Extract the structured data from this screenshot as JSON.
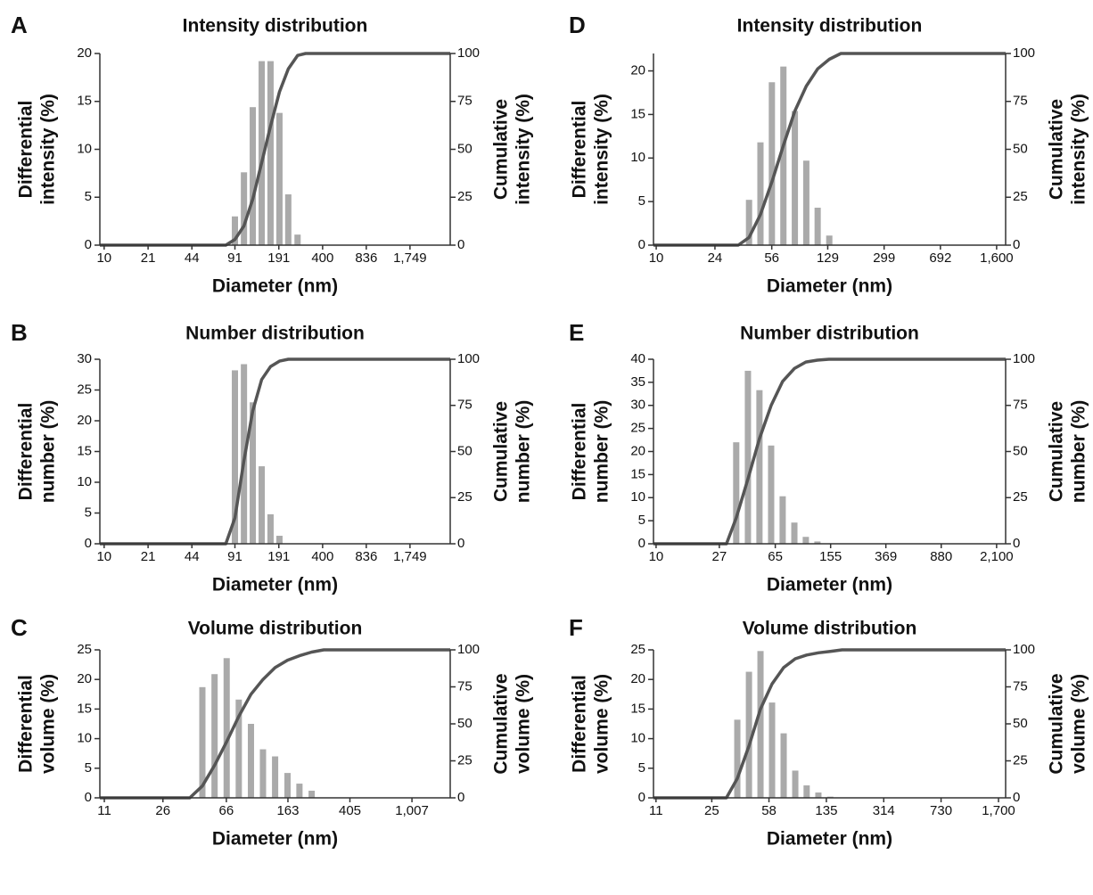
{
  "chart_data": [
    {
      "type": "bar",
      "panel": "A",
      "title": "Intensity distribution",
      "xlabel": "Diameter (nm)",
      "ylabel": [
        "Differential",
        "intensity (%)"
      ],
      "y2label": [
        "Cumulative",
        "intensity (%)"
      ],
      "xscale": "log",
      "xlim": [
        9.3,
        3450
      ],
      "xticks": [
        10,
        21,
        44,
        91,
        191,
        400,
        836,
        {
          "value": 1749,
          "label": "1,749"
        }
      ],
      "ylim": [
        0,
        20
      ],
      "yticks": [
        0,
        5,
        10,
        15,
        20
      ],
      "y2lim": [
        0,
        100
      ],
      "y2ticks": [
        0,
        25,
        50,
        75,
        100
      ],
      "series": [
        {
          "type": "bar",
          "color": "#aaaaaa",
          "x": [
            91,
            106,
            123,
            143,
            166,
            193,
            224,
            262
          ],
          "values": [
            3,
            7.6,
            14.4,
            19.2,
            19.2,
            13.8,
            5.3,
            1.1
          ]
        },
        {
          "type": "line",
          "axis": "y2",
          "color": "#555555",
          "x": [
            9.3,
            78,
            91,
            106,
            123,
            143,
            166,
            193,
            224,
            262,
            300,
            3450
          ],
          "values": [
            0,
            0,
            3,
            10,
            24,
            43,
            62,
            80,
            92,
            99,
            100,
            100
          ]
        }
      ]
    },
    {
      "type": "bar",
      "panel": "B",
      "title": "Number distribution",
      "xlabel": "Diameter (nm)",
      "ylabel": [
        "Differential",
        "number (%)"
      ],
      "y2label": [
        "Cumulative",
        "number (%)"
      ],
      "xscale": "log",
      "xlim": [
        9.3,
        3450
      ],
      "xticks": [
        10,
        21,
        44,
        91,
        191,
        400,
        836,
        {
          "value": 1749,
          "label": "1,749"
        }
      ],
      "ylim": [
        0,
        30
      ],
      "yticks": [
        0,
        5,
        10,
        15,
        20,
        25,
        30
      ],
      "y2lim": [
        0,
        100
      ],
      "y2ticks": [
        0,
        25,
        50,
        75,
        100
      ],
      "series": [
        {
          "type": "bar",
          "color": "#aaaaaa",
          "x": [
            91,
            106,
            123,
            143,
            166,
            193
          ],
          "values": [
            28.2,
            29.2,
            23,
            12.6,
            4.8,
            1.3
          ]
        },
        {
          "type": "line",
          "axis": "y2",
          "color": "#555555",
          "x": [
            9.3,
            78,
            91,
            106,
            123,
            143,
            166,
            193,
            224,
            3450
          ],
          "values": [
            0,
            0,
            14,
            45,
            72,
            89,
            96,
            99,
            100,
            100
          ]
        }
      ]
    },
    {
      "type": "bar",
      "panel": "C",
      "title": "Volume distribution",
      "xlabel": "Diameter (nm)",
      "ylabel": [
        "Differential",
        "volume (%)"
      ],
      "y2label": [
        "Cumulative",
        "volume (%)"
      ],
      "xscale": "log",
      "xlim": [
        10.3,
        1766
      ],
      "xticks": [
        11,
        26,
        66,
        163,
        405,
        {
          "value": 1007,
          "label": "1,007"
        }
      ],
      "ylim": [
        0,
        25
      ],
      "yticks": [
        0,
        5,
        10,
        15,
        20,
        25
      ],
      "y2lim": [
        0,
        100
      ],
      "y2ticks": [
        0,
        25,
        50,
        75,
        100
      ],
      "series": [
        {
          "type": "bar",
          "color": "#aaaaaa",
          "x": [
            46.4,
            55.5,
            66.3,
            79.2,
            94.7,
            113,
            135,
            162,
            193,
            231
          ],
          "values": [
            18.7,
            20.9,
            23.6,
            16.6,
            12.5,
            8.2,
            7,
            4.2,
            2.4,
            1.2
          ]
        },
        {
          "type": "line",
          "axis": "y2",
          "color": "#555555",
          "x": [
            10.3,
            38.6,
            46.4,
            55.5,
            66.3,
            79.2,
            94.7,
            113,
            135,
            162,
            193,
            231,
            276,
            1766
          ],
          "values": [
            0,
            0,
            8,
            22,
            38,
            55,
            70,
            80,
            88,
            93,
            96,
            98.5,
            100,
            100
          ]
        }
      ]
    },
    {
      "type": "bar",
      "panel": "D",
      "title": "Intensity distribution",
      "xlabel": "Diameter (nm)",
      "ylabel": [
        "Differential",
        "intensity (%)"
      ],
      "y2label": [
        "Cumulative",
        "intensity (%)"
      ],
      "xscale": "log",
      "xlim": [
        9.6,
        1830
      ],
      "xticks": [
        10,
        24,
        56,
        129,
        299,
        692,
        {
          "value": 1600,
          "label": "1,600"
        }
      ],
      "ylim": [
        0,
        22
      ],
      "yticks": [
        0,
        5,
        10,
        15,
        20
      ],
      "y2lim": [
        0,
        100
      ],
      "y2ticks": [
        0,
        25,
        50,
        75,
        100
      ],
      "series": [
        {
          "type": "bar",
          "color": "#aaaaaa",
          "x": [
            39.9,
            47.3,
            56.1,
            66.6,
            79,
            93.7,
            111,
            132
          ],
          "values": [
            5.2,
            11.8,
            18.7,
            20.5,
            15.4,
            9.7,
            4.3,
            1.1
          ]
        },
        {
          "type": "line",
          "axis": "y2",
          "color": "#555555",
          "x": [
            9.6,
            34,
            39.9,
            47.3,
            56.1,
            66.6,
            79,
            93.7,
            111,
            132,
            157,
            1830
          ],
          "values": [
            0,
            0,
            4,
            16,
            33,
            52,
            70,
            83,
            92,
            97,
            100,
            100
          ]
        }
      ]
    },
    {
      "type": "bar",
      "panel": "E",
      "title": "Number distribution",
      "xlabel": "Diameter (nm)",
      "ylabel": [
        "Differential",
        "number (%)"
      ],
      "y2label": [
        "Cumulative",
        "number (%)"
      ],
      "xscale": "log",
      "xlim": [
        9.6,
        2420
      ],
      "xticks": [
        10,
        27,
        65,
        155,
        369,
        880,
        {
          "value": 2100,
          "label": "2,100"
        }
      ],
      "ylim": [
        0,
        40
      ],
      "yticks": [
        0,
        5,
        10,
        15,
        20,
        25,
        30,
        35,
        40
      ],
      "y2lim": [
        0,
        100
      ],
      "y2ticks": [
        0,
        25,
        50,
        75,
        100
      ],
      "series": [
        {
          "type": "bar",
          "color": "#aaaaaa",
          "x": [
            35.2,
            42.3,
            50.7,
            60.9,
            73,
            87.7,
            105,
            126
          ],
          "values": [
            22,
            37.5,
            33.3,
            21.3,
            10.3,
            4.6,
            1.5,
            0.5
          ]
        },
        {
          "type": "line",
          "axis": "y2",
          "color": "#555555",
          "x": [
            9.6,
            30.2,
            35.2,
            42.3,
            50.7,
            60.9,
            73,
            87.7,
            105,
            126,
            151,
            2420
          ],
          "values": [
            0,
            0,
            14,
            35,
            57,
            75,
            88,
            95,
            98.5,
            99.5,
            100,
            100
          ]
        }
      ]
    },
    {
      "type": "bar",
      "panel": "F",
      "title": "Volume distribution",
      "xlabel": "Diameter (nm)",
      "ylabel": [
        "Differential",
        "volume (%)"
      ],
      "y2label": [
        "Cumulative",
        "volume (%)"
      ],
      "xscale": "log",
      "xlim": [
        10.6,
        1888
      ],
      "xticks": [
        11,
        25,
        58,
        135,
        314,
        730,
        {
          "value": 1700,
          "label": "1,700"
        }
      ],
      "ylim": [
        0,
        25
      ],
      "yticks": [
        0,
        5,
        10,
        15,
        20,
        25
      ],
      "y2lim": [
        0,
        100
      ],
      "y2ticks": [
        0,
        25,
        50,
        75,
        100
      ],
      "series": [
        {
          "type": "bar",
          "color": "#aaaaaa",
          "x": [
            36.4,
            43.2,
            51.2,
            60.7,
            72,
            85.4,
            101,
            120,
            143
          ],
          "values": [
            13.2,
            21.3,
            24.8,
            16.1,
            10.9,
            4.6,
            2.1,
            0.9,
            0.2
          ]
        },
        {
          "type": "line",
          "axis": "y2",
          "color": "#555555",
          "x": [
            10.6,
            31,
            36.4,
            43.2,
            51.2,
            60.7,
            72,
            85.4,
            101,
            120,
            143,
            170,
            1888
          ],
          "values": [
            0,
            0,
            13,
            35,
            60,
            77,
            88,
            94,
            96.5,
            98,
            99,
            100,
            100
          ]
        }
      ]
    }
  ]
}
